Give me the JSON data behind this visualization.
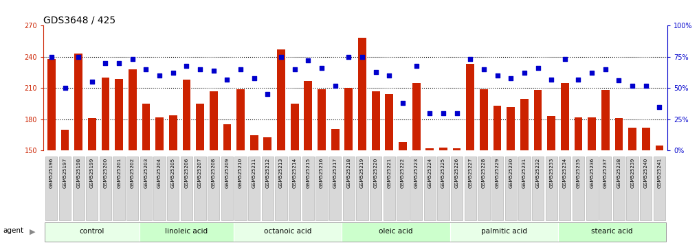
{
  "title": "GDS3648 / 425",
  "samples": [
    "GSM525196",
    "GSM525197",
    "GSM525198",
    "GSM525199",
    "GSM525200",
    "GSM525201",
    "GSM525202",
    "GSM525203",
    "GSM525204",
    "GSM525205",
    "GSM525206",
    "GSM525207",
    "GSM525208",
    "GSM525209",
    "GSM525210",
    "GSM525211",
    "GSM525212",
    "GSM525213",
    "GSM525214",
    "GSM525215",
    "GSM525216",
    "GSM525217",
    "GSM525218",
    "GSM525219",
    "GSM525220",
    "GSM525221",
    "GSM525222",
    "GSM525223",
    "GSM525224",
    "GSM525225",
    "GSM525226",
    "GSM525227",
    "GSM525228",
    "GSM525229",
    "GSM525230",
    "GSM525231",
    "GSM525232",
    "GSM525233",
    "GSM525234",
    "GSM525235",
    "GSM525236",
    "GSM525237",
    "GSM525238",
    "GSM525239",
    "GSM525240",
    "GSM525241"
  ],
  "counts": [
    238,
    170,
    243,
    181,
    220,
    219,
    228,
    195,
    182,
    184,
    218,
    195,
    207,
    175,
    209,
    165,
    163,
    247,
    195,
    217,
    209,
    171,
    210,
    258,
    207,
    204,
    158,
    215,
    152,
    153,
    152,
    233,
    209,
    193,
    192,
    200,
    208,
    183,
    215,
    182,
    182,
    208,
    181,
    172,
    172,
    155
  ],
  "percentiles": [
    75,
    50,
    75,
    55,
    70,
    70,
    73,
    65,
    60,
    62,
    68,
    65,
    64,
    57,
    65,
    58,
    45,
    75,
    65,
    72,
    66,
    52,
    75,
    75,
    63,
    60,
    38,
    68,
    30,
    30,
    30,
    73,
    65,
    60,
    58,
    62,
    66,
    57,
    73,
    57,
    62,
    65,
    56,
    52,
    52,
    35
  ],
  "groups": [
    {
      "label": "control",
      "start": 0,
      "end": 7
    },
    {
      "label": "linoleic acid",
      "start": 7,
      "end": 14
    },
    {
      "label": "octanoic acid",
      "start": 14,
      "end": 22
    },
    {
      "label": "oleic acid",
      "start": 22,
      "end": 30
    },
    {
      "label": "palmitic acid",
      "start": 30,
      "end": 38
    },
    {
      "label": "stearic acid",
      "start": 38,
      "end": 46
    }
  ],
  "group_colors": [
    "#e8ffe8",
    "#ccffcc",
    "#e8ffe8",
    "#ccffcc",
    "#e8ffe8",
    "#ccffcc"
  ],
  "bar_color": "#cc2200",
  "dot_color": "#0000cc",
  "ymin": 150,
  "ymax": 270,
  "yticks_left": [
    150,
    180,
    210,
    240,
    270
  ],
  "yticks_right": [
    0,
    25,
    50,
    75,
    100
  ],
  "gridlines": [
    180,
    210,
    240
  ],
  "bg_color": "#ffffff",
  "tick_box_color": "#d8d8d8",
  "tick_box_edge": "#aaaaaa"
}
